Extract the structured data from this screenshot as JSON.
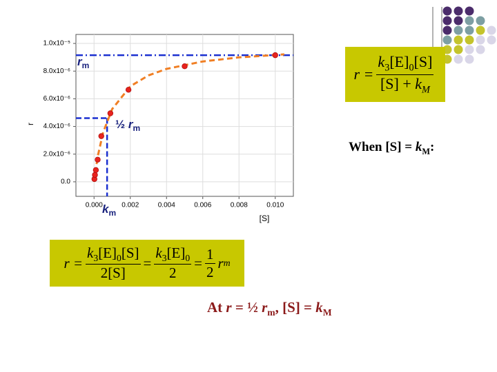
{
  "chart_data": {
    "type": "scatter",
    "x_label": "[S]",
    "y_label": "r",
    "x": [
      2e-05,
      5e-05,
      0.0001,
      0.0002,
      0.0004,
      0.0009,
      0.0019,
      0.005,
      0.01
    ],
    "values": [
      2e-07,
      5e-07,
      8.5e-07,
      1.6e-06,
      3.3e-06,
      4.95e-06,
      6.65e-06,
      8.35e-06,
      9.15e-06
    ],
    "color": "#e8231e",
    "curve": {
      "x": [
        0,
        0.0002,
        0.0005,
        0.001,
        0.002,
        0.003,
        0.004,
        0.006,
        0.008,
        0.0105
      ],
      "values": [
        0,
        1.82e-06,
        3.57e-06,
        5.26e-06,
        6.9e-06,
        7.69e-06,
        8.16e-06,
        8.7e-06,
        8.99e-06,
        9.21e-06
      ],
      "color": "#f07f24"
    },
    "reference_lines": {
      "rm": {
        "value": 9.15e-06,
        "label": [
          "r",
          "m"
        ]
      },
      "half": {
        "value": 4.6e-06,
        "label": [
          "½ ",
          "r",
          "m"
        ]
      },
      "km": {
        "value": 0.00072,
        "label": [
          "k",
          "m"
        ]
      },
      "color": "#1a2fd0"
    },
    "xlim": [
      -0.001,
      0.011
    ],
    "ylim": [
      -1.05e-06,
      1.065e-05
    ],
    "xticks": [
      {
        "value": 0,
        "label": "0.000"
      },
      {
        "value": 0.002,
        "label": "0.002"
      },
      {
        "value": 0.004,
        "label": "0.004"
      },
      {
        "value": 0.006,
        "label": "0.006"
      },
      {
        "value": 0.008,
        "label": "0.008"
      },
      {
        "value": 0.01,
        "label": "0.010"
      }
    ],
    "yticks": [
      {
        "value": 0,
        "label": "0.0"
      },
      {
        "value": 2e-06,
        "label": "2.0x10⁻⁶"
      },
      {
        "value": 4e-06,
        "label": "4.0x10⁻⁶"
      },
      {
        "value": 6e-06,
        "label": "6.0x10⁻⁶"
      },
      {
        "value": 8e-06,
        "label": "8.0x10⁻⁶"
      },
      {
        "value": 1e-05,
        "label": "1.0x10⁻⁵"
      }
    ],
    "grid": true
  },
  "equation1": {
    "lhs": "r =",
    "num": [
      "k",
      "3",
      "[E]",
      "0",
      "[S]"
    ],
    "den": [
      "[S] + ",
      "k",
      "M"
    ]
  },
  "when_text": [
    "When [S] = ",
    "k",
    "M",
    ":"
  ],
  "equation2": {
    "lhs": "r =",
    "f1num": [
      "k",
      "3",
      "[E]",
      "0",
      "[S]"
    ],
    "f1den": "2[S]",
    "eq": "=",
    "f2num": [
      "k",
      "3",
      "[E]",
      "0"
    ],
    "f2den": "2",
    "f3num": "1",
    "f3den": "2",
    "rhs": [
      "r",
      "m"
    ]
  },
  "conclusion": [
    "At ",
    "r",
    " = ½ ",
    "r",
    "m",
    ", [S] = ",
    "k",
    "M"
  ]
}
